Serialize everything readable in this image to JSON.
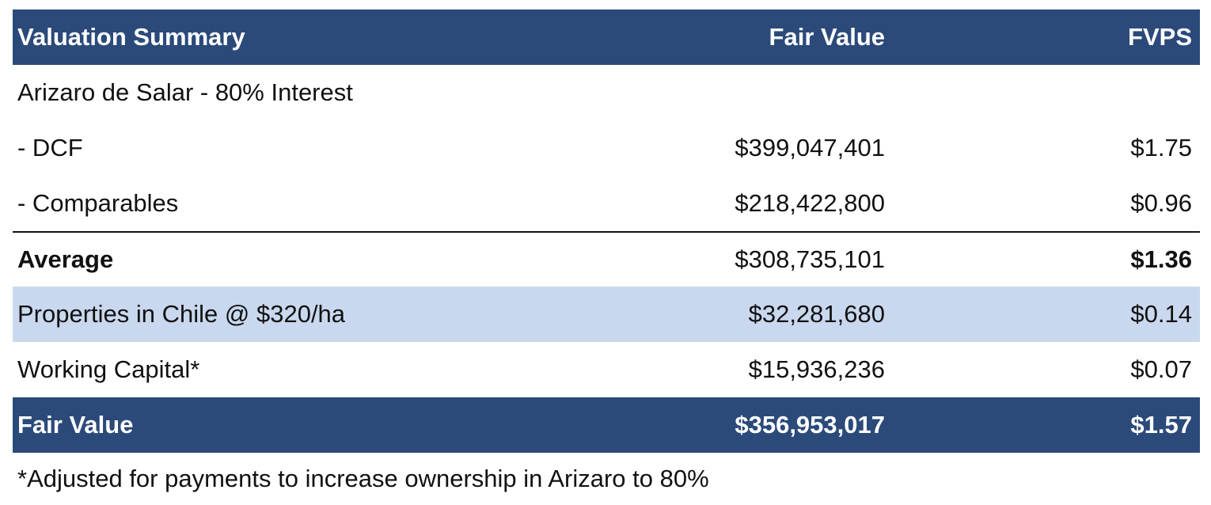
{
  "table": {
    "header": {
      "title": "Valuation Summary",
      "col_fair_value": "Fair Value",
      "col_fvps": "FVPS"
    },
    "rows": [
      {
        "label": "Arizaro de Salar - 80% Interest",
        "fair_value": "",
        "fvps": ""
      },
      {
        "label": " - DCF",
        "fair_value": "$399,047,401",
        "fvps": "$1.75"
      },
      {
        "label": " - Comparables",
        "fair_value": "$218,422,800",
        "fvps": "$0.96"
      },
      {
        "label": "Average",
        "fair_value": "$308,735,101",
        "fvps": "$1.36"
      },
      {
        "label": "Properties in Chile @ $320/ha",
        "fair_value": "$32,281,680",
        "fvps": "$0.14"
      },
      {
        "label": "Working Capital*",
        "fair_value": "$15,936,236",
        "fvps": "$0.07"
      }
    ],
    "total": {
      "label": "Fair Value",
      "fair_value": "$356,953,017",
      "fvps": "$1.57"
    }
  },
  "footnote": "*Adjusted for payments to increase ownership in Arizaro to 80%",
  "colors": {
    "header_bg": "#2b4a7a",
    "shaded_row_bg": "#c9d8ee",
    "header_text": "#ffffff"
  }
}
